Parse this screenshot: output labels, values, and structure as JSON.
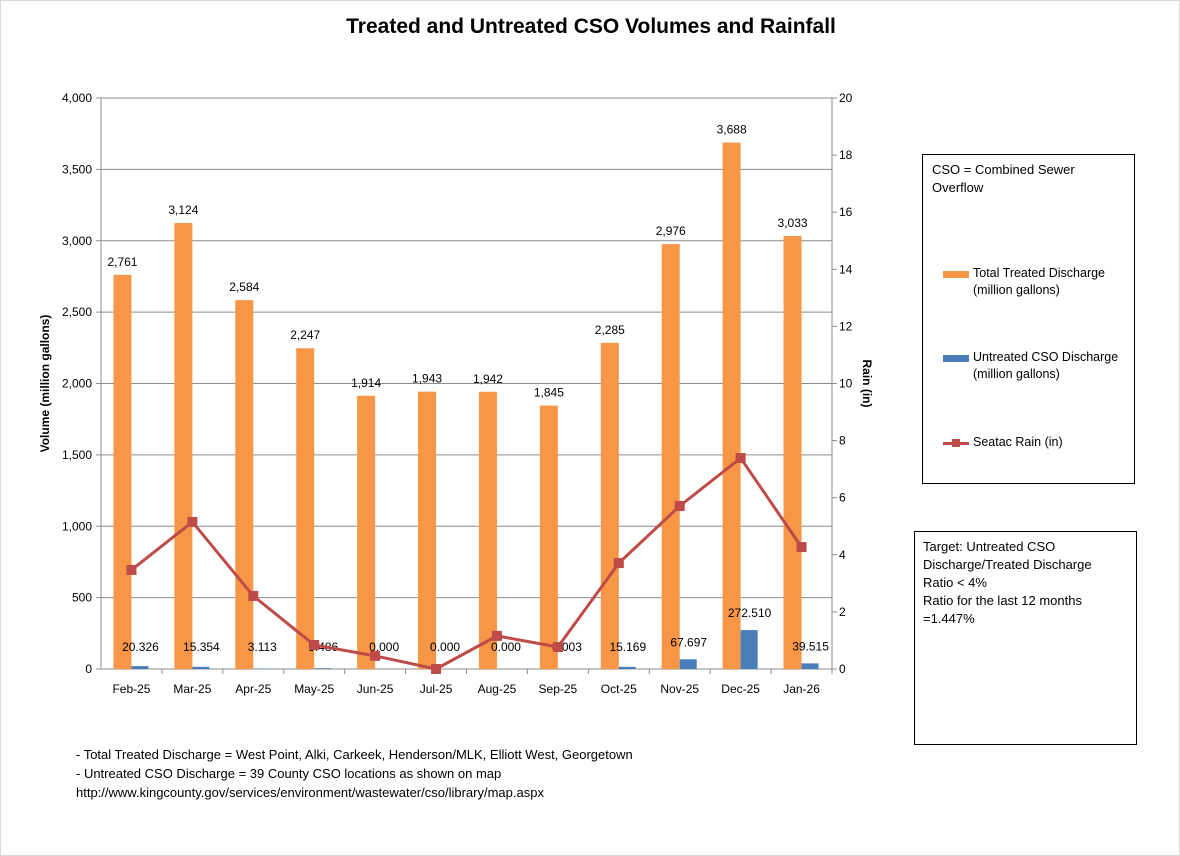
{
  "chart_data": {
    "type": "bar+line",
    "title": "Treated and Untreated CSO Volumes and Rainfall",
    "categories": [
      "Feb-25",
      "Mar-25",
      "Apr-25",
      "May-25",
      "Jun-25",
      "Jul-25",
      "Aug-25",
      "Sep-25",
      "Oct-25",
      "Nov-25",
      "Dec-25",
      "Jan-26"
    ],
    "series": [
      {
        "name": "Total Treated Discharge (million gallons)",
        "type": "bar",
        "axis": "left",
        "color": "#f79646",
        "values": [
          2761,
          3124,
          2584,
          2247,
          1914,
          1943,
          1942,
          1845,
          2285,
          2976,
          3688,
          3033
        ],
        "labels": [
          "2,761",
          "3,124",
          "2,584",
          "2,247",
          "1,914",
          "1,943",
          "1,942",
          "1,845",
          "2,285",
          "2,976",
          "3,688",
          "3,033"
        ]
      },
      {
        "name": "Untreated CSO Discharge (million gallons)",
        "type": "bar",
        "axis": "left",
        "color": "#4a7ebb",
        "values": [
          20.326,
          15.354,
          3.113,
          5.486,
          0.0,
          0.0,
          0.0,
          0.003,
          15.169,
          67.697,
          272.51,
          39.515
        ],
        "labels": [
          "20.326",
          "15.354",
          "3.113",
          "5.486",
          "0.000",
          "0.000",
          "0.000",
          "0.003",
          "15.169",
          "67.697",
          "272.510",
          "39.515"
        ]
      },
      {
        "name": "Seatac Rain (in)",
        "type": "line",
        "axis": "right",
        "color": "#be4b48",
        "values": [
          3.47,
          5.15,
          2.56,
          0.84,
          0.46,
          0.0,
          1.16,
          0.77,
          3.71,
          5.71,
          7.39,
          4.27
        ]
      }
    ],
    "ylabel": "Volume (million gallons)",
    "ylim": [
      0,
      4000
    ],
    "yticks": [
      "0",
      "500",
      "1,000",
      "1,500",
      "2,000",
      "2,500",
      "3,000",
      "3,500",
      "4,000"
    ],
    "y2label": "Rain (in)",
    "y2lim": [
      0,
      20
    ],
    "y2ticks": [
      "0",
      "2",
      "4",
      "6",
      "8",
      "10",
      "12",
      "14",
      "16",
      "18",
      "20"
    ],
    "grid": true,
    "legend_position": "right"
  },
  "legend": {
    "header": "CSO = Combined Sewer Overflow",
    "items": [
      "Total Treated Discharge (million gallons)",
      "Untreated CSO Discharge (million gallons)",
      "Seatac Rain (in)"
    ]
  },
  "target_box": [
    "Target: Untreated CSO Discharge/Treated Discharge",
    "Ratio < 4%",
    "Ratio for the last 12 months =1.447%"
  ],
  "notes": [
    "- Total Treated Discharge = West Point, Alki, Carkeek, Henderson/MLK, Elliott West, Georgetown",
    "- Untreated CSO Discharge = 39 County CSO locations as shown on map",
    "http://www.kingcounty.gov/services/environment/wastewater/cso/library/map.aspx"
  ]
}
